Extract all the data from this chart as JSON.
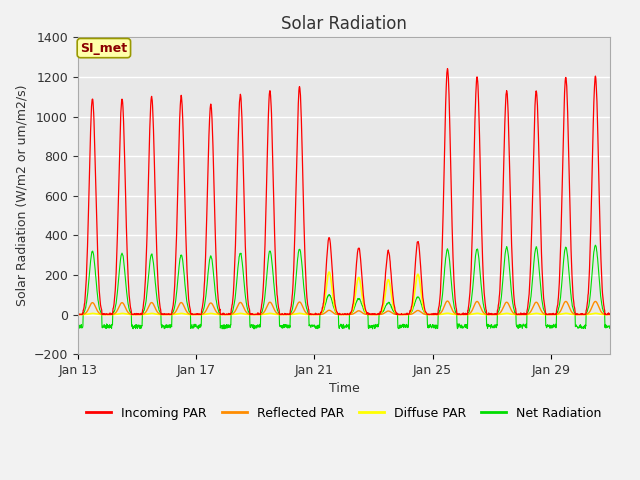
{
  "title": "Solar Radiation",
  "xlabel": "Time",
  "ylabel": "Solar Radiation (W/m2 or um/m2/s)",
  "ylim": [
    -200,
    1400
  ],
  "yticks": [
    -200,
    0,
    200,
    400,
    600,
    800,
    1000,
    1200,
    1400
  ],
  "xtick_labels": [
    "Jan 13",
    "Jan 17",
    "Jan 21",
    "Jan 25",
    "Jan 29"
  ],
  "xtick_days": [
    0,
    4,
    8,
    12,
    16
  ],
  "colors": {
    "incoming": "#FF0000",
    "reflected": "#FF8C00",
    "diffuse": "#FFFF00",
    "net": "#00DD00"
  },
  "legend_entries": [
    "Incoming PAR",
    "Reflected PAR",
    "Diffuse PAR",
    "Net Radiation"
  ],
  "annotation_text": "SI_met",
  "annotation_bg": "#FFFFAA",
  "annotation_border": "#999900",
  "background_color": "#E8E8E8",
  "title_fontsize": 12,
  "label_fontsize": 9,
  "tick_fontsize": 9,
  "n_days": 19,
  "n_per_day": 96,
  "day_peaks_incoming": [
    1090,
    1090,
    1100,
    1100,
    1060,
    1110,
    1130,
    1150,
    390,
    340,
    320,
    370,
    1240,
    1200,
    1130,
    1130,
    1200,
    1200,
    1200
  ],
  "day_peaks_net": [
    320,
    310,
    305,
    300,
    295,
    310,
    320,
    330,
    100,
    80,
    60,
    90,
    330,
    330,
    340,
    340,
    340,
    350,
    350
  ],
  "cloudy_days": [
    8,
    9,
    10,
    11
  ],
  "night_net_min": -70,
  "night_net_max": -50,
  "fig_width": 6.4,
  "fig_height": 4.8,
  "dpi": 100
}
